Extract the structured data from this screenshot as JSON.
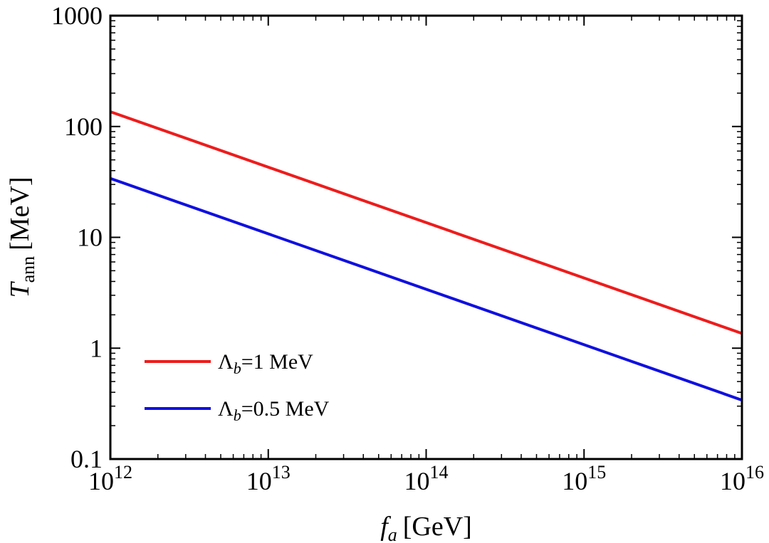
{
  "chart_data": {
    "type": "line",
    "title": "",
    "xlabel": {
      "main": "f",
      "sub": "a",
      "unit": "[GeV]"
    },
    "ylabel": {
      "main": "T",
      "sub": "ann",
      "unit": "[MeV]"
    },
    "xscale": "log",
    "yscale": "log",
    "xlim": [
      1000000000000.0,
      1e+16
    ],
    "ylim": [
      0.1,
      1000
    ],
    "grid": false,
    "legend_position": "bottom-left",
    "x_ticks": [
      {
        "base": "10",
        "exp": "12",
        "value": 1000000000000.0
      },
      {
        "base": "10",
        "exp": "13",
        "value": 10000000000000.0
      },
      {
        "base": "10",
        "exp": "14",
        "value": 100000000000000.0
      },
      {
        "base": "10",
        "exp": "15",
        "value": 1000000000000000.0
      },
      {
        "base": "10",
        "exp": "16",
        "value": 1e+16
      }
    ],
    "y_ticks": [
      {
        "label": "0.1",
        "value": 0.1
      },
      {
        "label": "1",
        "value": 1
      },
      {
        "label": "10",
        "value": 10
      },
      {
        "label": "100",
        "value": 100
      },
      {
        "label": "1000",
        "value": 1000
      }
    ],
    "series": [
      {
        "name": {
          "symbol": "Λ",
          "sub": "b",
          "text": "=1 MeV"
        },
        "color": "#ee1c1c",
        "x": [
          1000000000000.0,
          1e+16
        ],
        "y": [
          136,
          1.36
        ]
      },
      {
        "name": {
          "symbol": "Λ",
          "sub": "b",
          "text": "=0.5 MeV"
        },
        "color": "#1010e0",
        "x": [
          1000000000000.0,
          1e+16
        ],
        "y": [
          34,
          0.34
        ]
      }
    ]
  }
}
